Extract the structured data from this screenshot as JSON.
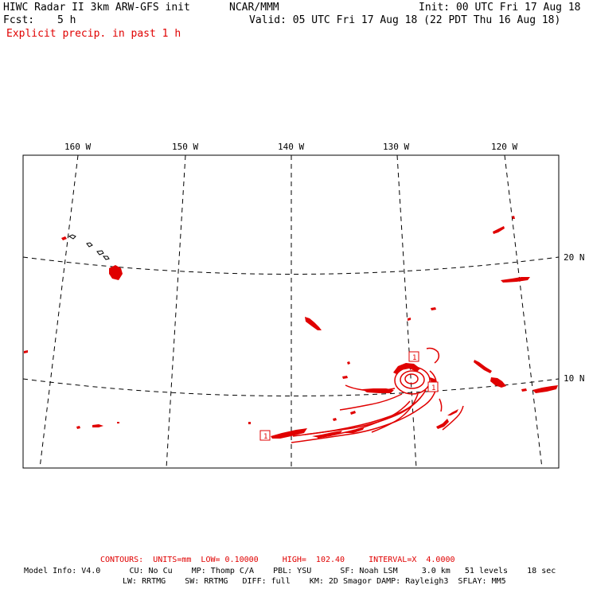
{
  "header": {
    "title": "HIWC Radar II 3km ARW-GFS init",
    "center": "NCAR/MMM",
    "init": "Init: 00 UTC Fri 17 Aug 18",
    "fcst_label": "Fcst:",
    "fcst_value": "5 h",
    "valid": "Valid: 05 UTC Fri 17 Aug 18 (22 PDT Thu 16 Aug 18)",
    "field": "Explicit precip. in past 1 h"
  },
  "map": {
    "lon_labels": [
      "160 W",
      "150 W",
      "140 W",
      "130 W",
      "120 W"
    ],
    "lat_labels": [
      "20 N",
      "10 N"
    ],
    "contour_marker": "1"
  },
  "footer": {
    "contours": "CONTOURS:  UNITS=mm  LOW= 0.10000     HIGH=  102.40     INTERVAL=X  4.0000",
    "model_line1": "Model Info: V4.0      CU: No Cu    MP: Thomp C/A    PBL: YSU      SF: Noah LSM     3.0 km   51 levels    18 sec",
    "model_line2": "LW: RRTMG    SW: RRTMG   DIFF: full    KM: 2D Smagor DAMP: Rayleigh3  SFLAY: MM5"
  },
  "colors": {
    "precip": "#e00000",
    "coast": "#000000"
  }
}
